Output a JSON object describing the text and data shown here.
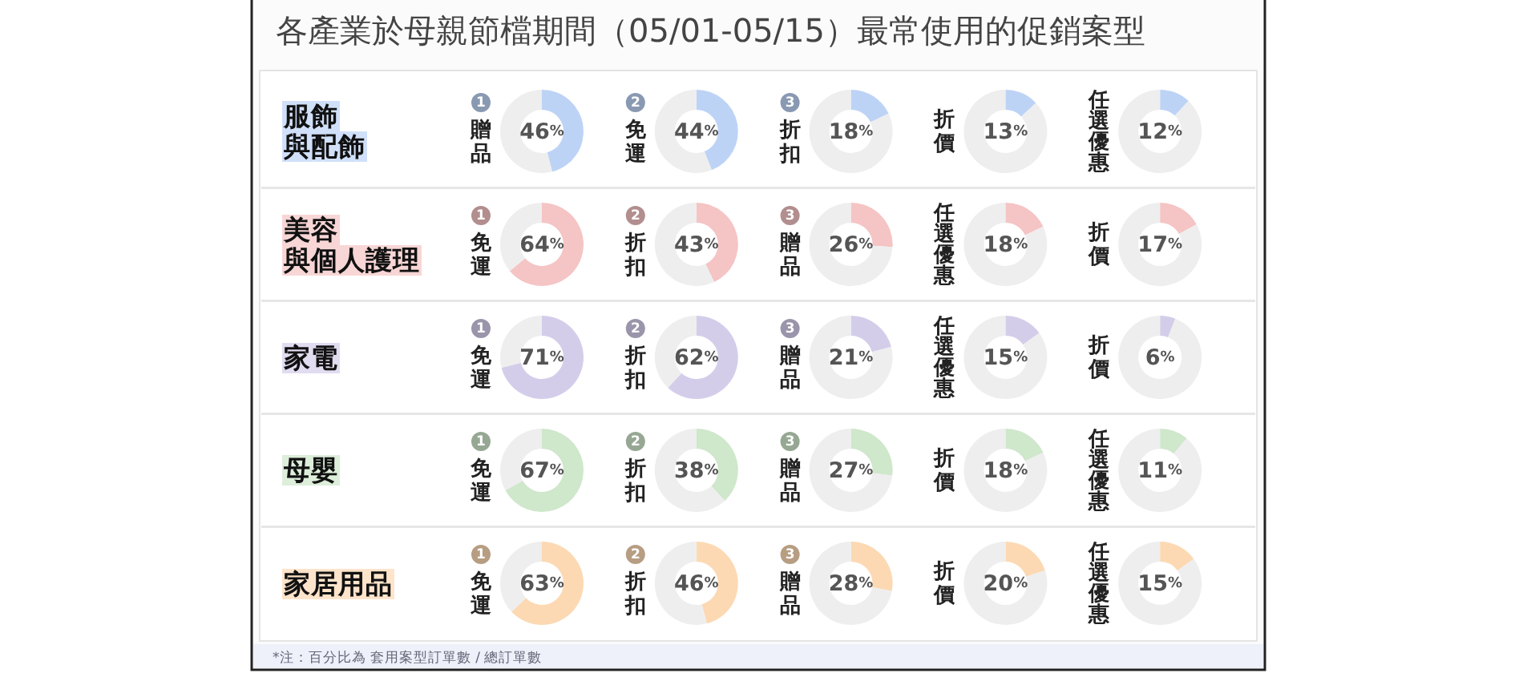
{
  "chart_data": [
    {
      "type": "other",
      "title": "各產業於母親節檔期間（05/01-05/15）最常使用的促銷案型",
      "annotations": [
        "*注：百分比為 套用案型訂單數 / 總訂單數"
      ]
    },
    {
      "type": "donut",
      "ylabel": "服飾與配飾",
      "title": "贈品",
      "categories": [
        null,
        null
      ],
      "values": [
        46,
        54
      ],
      "colors": [
        "#bdd3f6",
        "#eeeeee"
      ],
      "annotations": [
        "1",
        "46%"
      ]
    },
    {
      "type": "donut",
      "title": "免運",
      "categories": [
        null,
        null
      ],
      "values": [
        44,
        56
      ],
      "colors": [
        "#bdd3f6",
        "#eeeeee"
      ],
      "annotations": [
        "2",
        "44%"
      ]
    },
    {
      "type": "donut",
      "title": "折扣",
      "categories": [
        null,
        null
      ],
      "values": [
        18,
        82
      ],
      "colors": [
        "#bdd3f6",
        "#eeeeee"
      ],
      "annotations": [
        "3",
        "18%"
      ]
    },
    {
      "type": "donut",
      "title": "折價",
      "categories": [
        null,
        null
      ],
      "values": [
        13,
        87
      ],
      "colors": [
        "#bdd3f6",
        "#eeeeee"
      ],
      "annotations": [
        "13%"
      ]
    },
    {
      "type": "donut",
      "title": "任選優惠",
      "categories": [
        null,
        null
      ],
      "values": [
        12,
        88
      ],
      "colors": [
        "#bdd3f6",
        "#eeeeee"
      ],
      "annotations": [
        "12%"
      ]
    },
    {
      "type": "donut",
      "ylabel": "美容與個人護理",
      "title": "免運",
      "categories": [
        null,
        null
      ],
      "values": [
        64,
        36
      ],
      "colors": [
        "#f5c4c4",
        "#eeeeee"
      ],
      "annotations": [
        "1",
        "64%"
      ]
    },
    {
      "type": "donut",
      "title": "折扣",
      "categories": [
        null,
        null
      ],
      "values": [
        43,
        57
      ],
      "colors": [
        "#f5c4c4",
        "#eeeeee"
      ],
      "annotations": [
        "2",
        "43%"
      ]
    },
    {
      "type": "donut",
      "title": "贈品",
      "categories": [
        null,
        null
      ],
      "values": [
        26,
        74
      ],
      "colors": [
        "#f5c4c4",
        "#eeeeee"
      ],
      "annotations": [
        "3",
        "26%"
      ]
    },
    {
      "type": "donut",
      "title": "任選優惠",
      "categories": [
        null,
        null
      ],
      "values": [
        18,
        82
      ],
      "colors": [
        "#f5c4c4",
        "#eeeeee"
      ],
      "annotations": [
        "18%"
      ]
    },
    {
      "type": "donut",
      "title": "折價",
      "categories": [
        null,
        null
      ],
      "values": [
        17,
        83
      ],
      "colors": [
        "#f5c4c4",
        "#eeeeee"
      ],
      "annotations": [
        "17%"
      ]
    },
    {
      "type": "donut",
      "ylabel": "家電",
      "title": "免運",
      "categories": [
        null,
        null
      ],
      "values": [
        71,
        29
      ],
      "colors": [
        "#d4cdea",
        "#eeeeee"
      ],
      "annotations": [
        "1",
        "71%"
      ]
    },
    {
      "type": "donut",
      "title": "折扣",
      "categories": [
        null,
        null
      ],
      "values": [
        62,
        38
      ],
      "colors": [
        "#d4cdea",
        "#eeeeee"
      ],
      "annotations": [
        "2",
        "62%"
      ]
    },
    {
      "type": "donut",
      "title": "贈品",
      "categories": [
        null,
        null
      ],
      "values": [
        21,
        79
      ],
      "colors": [
        "#d4cdea",
        "#eeeeee"
      ],
      "annotations": [
        "3",
        "21%"
      ]
    },
    {
      "type": "donut",
      "title": "任選優惠",
      "categories": [
        null,
        null
      ],
      "values": [
        15,
        85
      ],
      "colors": [
        "#d4cdea",
        "#eeeeee"
      ],
      "annotations": [
        "15%"
      ]
    },
    {
      "type": "donut",
      "title": "折價",
      "categories": [
        null,
        null
      ],
      "values": [
        6,
        94
      ],
      "colors": [
        "#d4cdea",
        "#eeeeee"
      ],
      "annotations": [
        "6%"
      ]
    },
    {
      "type": "donut",
      "ylabel": "母嬰",
      "title": "免運",
      "categories": [
        null,
        null
      ],
      "values": [
        67,
        33
      ],
      "colors": [
        "#cfe7cb",
        "#eeeeee"
      ],
      "annotations": [
        "1",
        "67%"
      ]
    },
    {
      "type": "donut",
      "title": "折扣",
      "categories": [
        null,
        null
      ],
      "values": [
        38,
        62
      ],
      "colors": [
        "#cfe7cb",
        "#eeeeee"
      ],
      "annotations": [
        "2",
        "38%"
      ]
    },
    {
      "type": "donut",
      "title": "贈品",
      "categories": [
        null,
        null
      ],
      "values": [
        27,
        73
      ],
      "colors": [
        "#cfe7cb",
        "#eeeeee"
      ],
      "annotations": [
        "3",
        "27%"
      ]
    },
    {
      "type": "donut",
      "title": "折價",
      "categories": [
        null,
        null
      ],
      "values": [
        18,
        82
      ],
      "colors": [
        "#cfe7cb",
        "#eeeeee"
      ],
      "annotations": [
        "18%"
      ]
    },
    {
      "type": "donut",
      "title": "任選優惠",
      "categories": [
        null,
        null
      ],
      "values": [
        11,
        89
      ],
      "colors": [
        "#cfe7cb",
        "#eeeeee"
      ],
      "annotations": [
        "11%"
      ]
    },
    {
      "type": "donut",
      "ylabel": "家居用品",
      "title": "免運",
      "categories": [
        null,
        null
      ],
      "values": [
        63,
        37
      ],
      "colors": [
        "#fcd9b3",
        "#eeeeee"
      ],
      "annotations": [
        "1",
        "63%"
      ]
    },
    {
      "type": "donut",
      "title": "折扣",
      "categories": [
        null,
        null
      ],
      "values": [
        46,
        54
      ],
      "colors": [
        "#fcd9b3",
        "#eeeeee"
      ],
      "annotations": [
        "2",
        "46%"
      ]
    },
    {
      "type": "donut",
      "title": "贈品",
      "categories": [
        null,
        null
      ],
      "values": [
        28,
        72
      ],
      "colors": [
        "#fcd9b3",
        "#eeeeee"
      ],
      "annotations": [
        "3",
        "28%"
      ]
    },
    {
      "type": "donut",
      "title": "折價",
      "categories": [
        null,
        null
      ],
      "values": [
        20,
        80
      ],
      "colors": [
        "#fcd9b3",
        "#eeeeee"
      ],
      "annotations": [
        "20%"
      ]
    },
    {
      "type": "donut",
      "title": "任選優惠",
      "categories": [
        null,
        null
      ],
      "values": [
        15,
        85
      ],
      "colors": [
        "#fcd9b3",
        "#eeeeee"
      ],
      "annotations": [
        "15%"
      ]
    }
  ]
}
